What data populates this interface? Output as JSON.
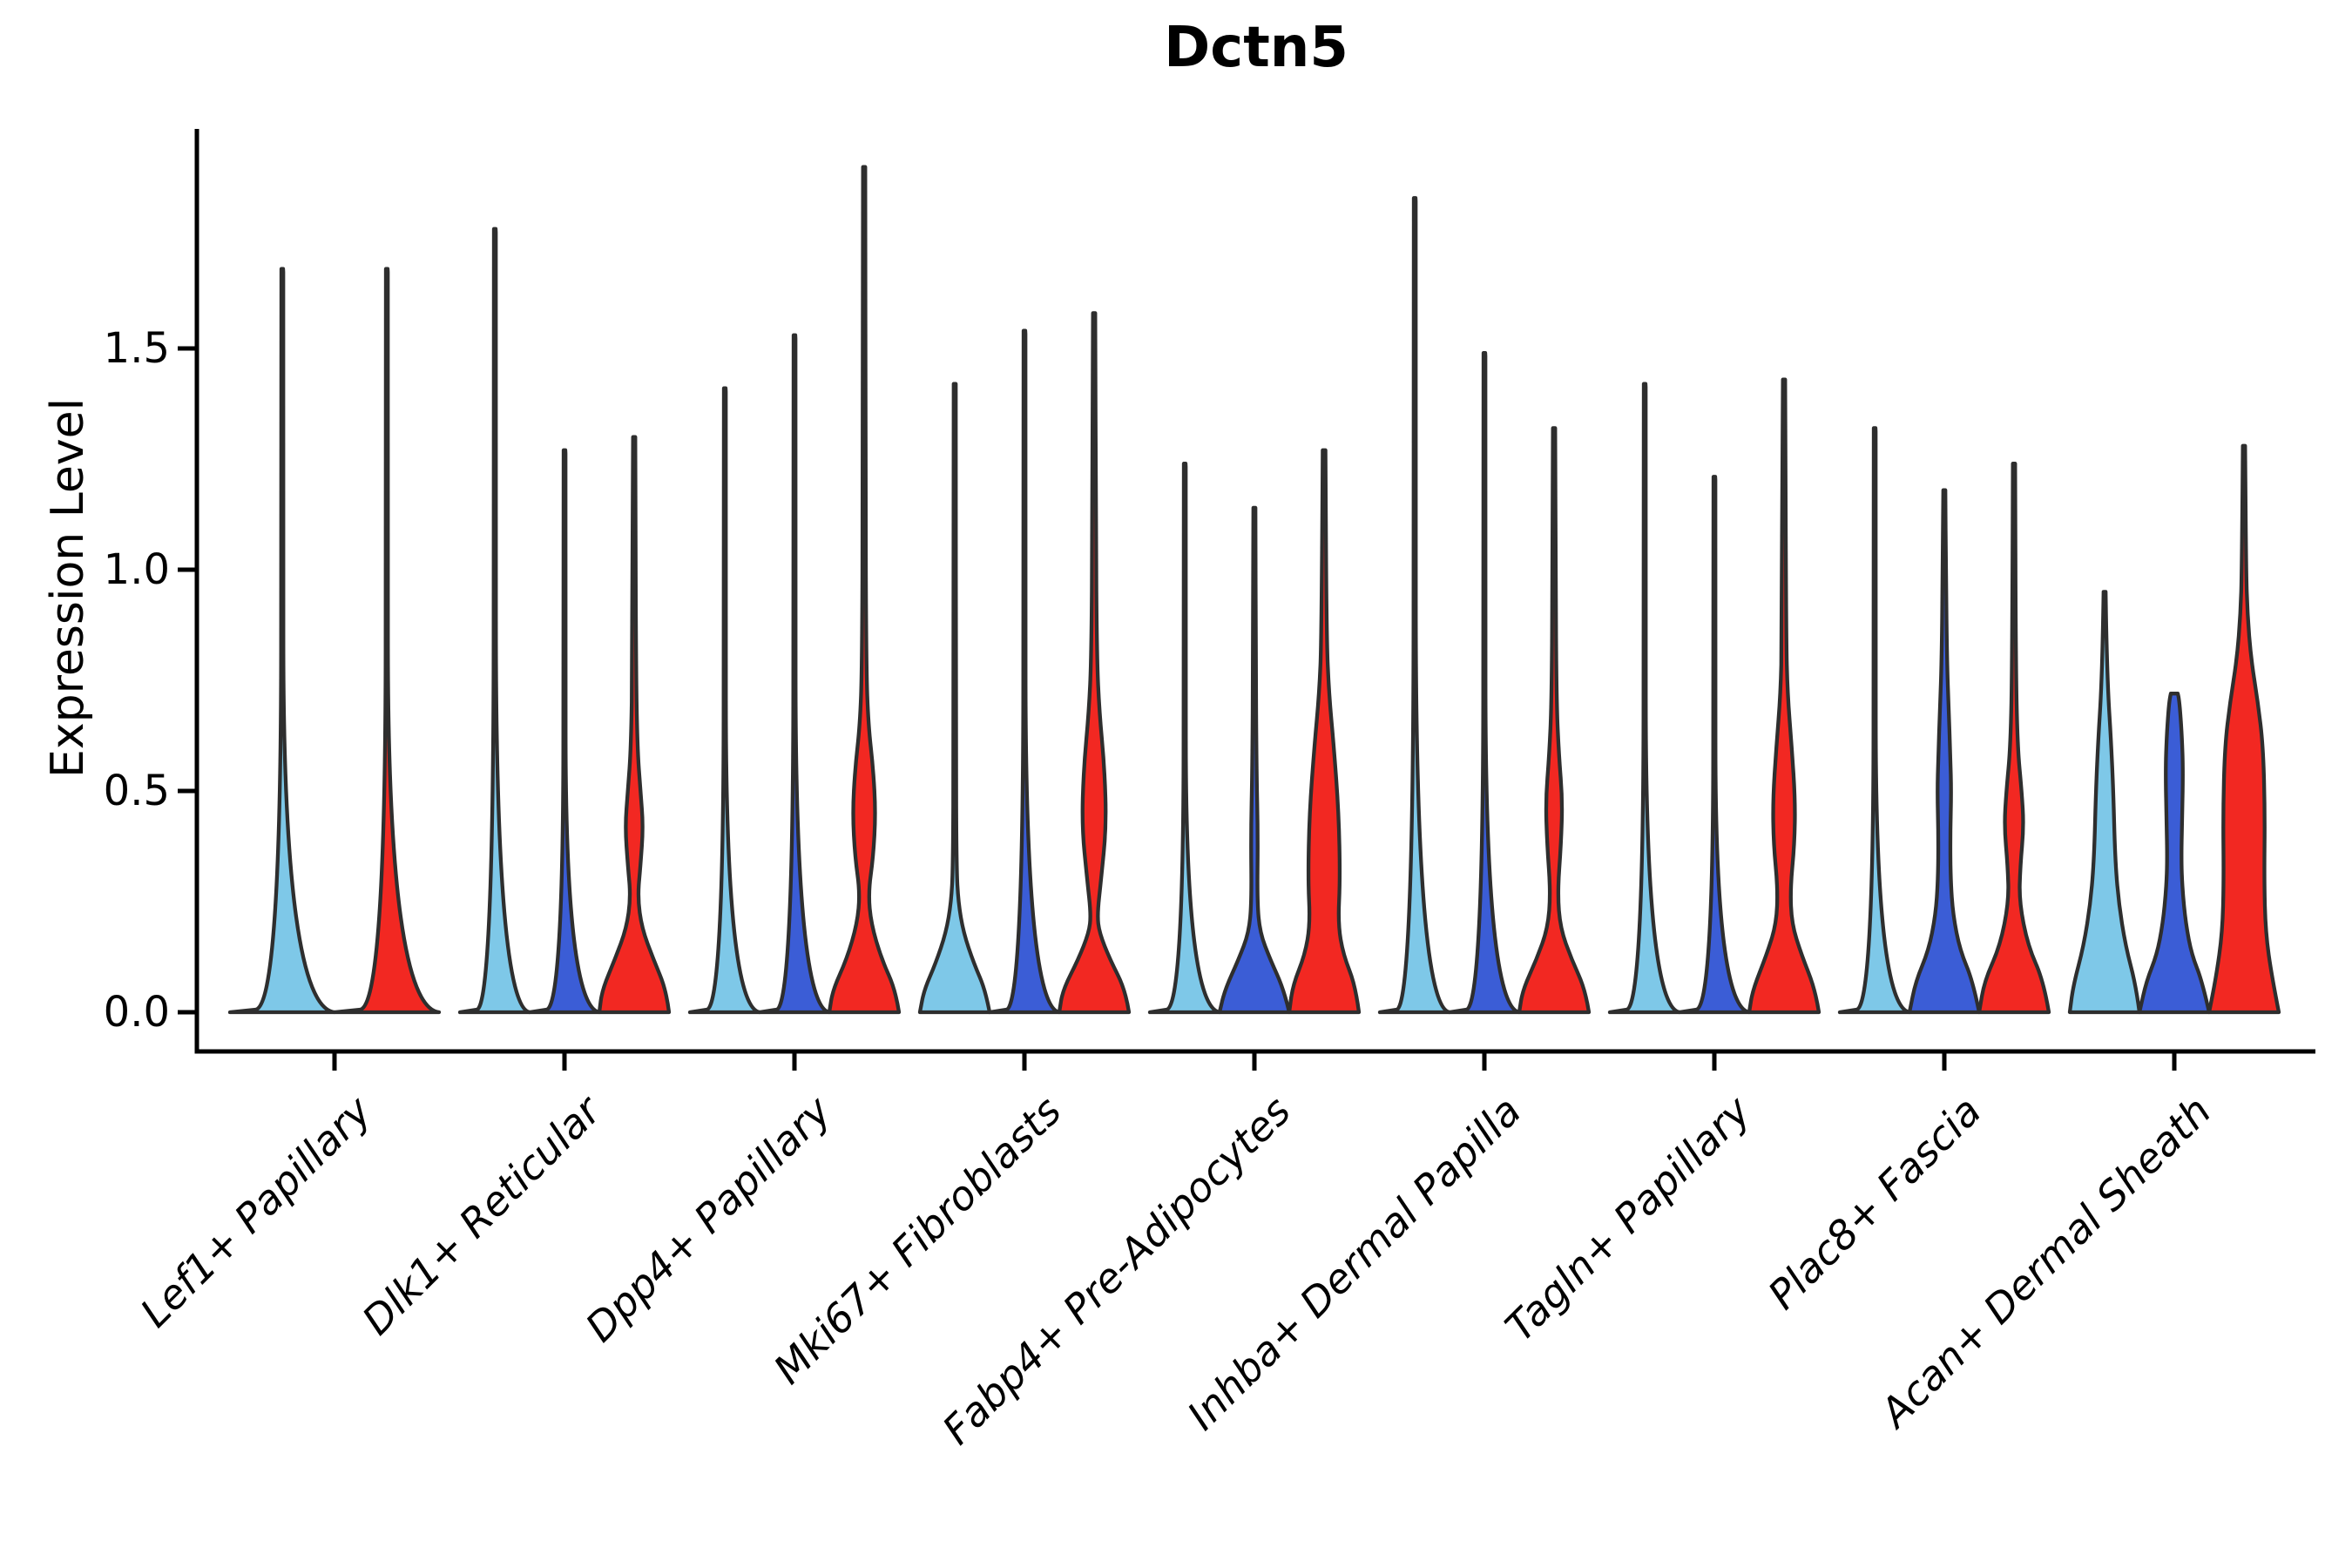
{
  "title": "Dctn5",
  "ylabel": "Expression Level",
  "colors": {
    "lightblue": "#7ec8e8",
    "darkblue": "#3b5dd6",
    "red": "#f22822",
    "violin_stroke": "#2e2e2e",
    "axis": "#000000"
  },
  "chart_data": {
    "type": "violin",
    "title": "Dctn5",
    "xlabel": "",
    "ylabel": "Expression Level",
    "yticks": [
      "0.0",
      "0.5",
      "1.0",
      "1.5"
    ],
    "ytick_values": [
      0.0,
      0.5,
      1.0,
      1.5
    ],
    "ylim": [
      -0.09,
      2.05
    ],
    "grid": false,
    "legend_position": "none",
    "x_labels_rotation_deg": 45,
    "categories": [
      "Lef1+ Papillary",
      "Dlk1+ Reticular",
      "Dpp4+ Papillary",
      "Mki67+ Fibroblasts",
      "Fabp4+ Pre-Adipocytes",
      "Inhba+ Dermal Papilla",
      "Tagln+ Papillary",
      "Plac8+ Fascia",
      "Acan+ Dermal Sheath"
    ],
    "groups": [
      {
        "label": "Lef1+ Papillary",
        "violins": [
          {
            "color": "lightblue",
            "max": 1.68,
            "shape": "line"
          },
          {
            "color": "red",
            "max": 1.68,
            "shape": "line"
          }
        ]
      },
      {
        "label": "Dlk1+ Reticular",
        "violins": [
          {
            "color": "lightblue",
            "max": 1.77,
            "shape": "line"
          },
          {
            "color": "darkblue",
            "max": 1.27,
            "shape": "line"
          },
          {
            "color": "red",
            "max": 1.3,
            "shape": "bulge",
            "profile": [
              [
                0,
                1
              ],
              [
                0.05,
                0.92
              ],
              [
                0.12,
                0.55
              ],
              [
                0.19,
                0.22
              ],
              [
                0.26,
                0.1
              ],
              [
                0.33,
                0.18
              ],
              [
                0.42,
                0.26
              ],
              [
                0.5,
                0.18
              ],
              [
                0.6,
                0.09
              ],
              [
                0.8,
                0.05
              ],
              [
                1.3,
                0.033
              ]
            ]
          }
        ]
      },
      {
        "label": "Dpp4+ Papillary",
        "violins": [
          {
            "color": "lightblue",
            "max": 1.41,
            "shape": "line"
          },
          {
            "color": "darkblue",
            "max": 1.53,
            "shape": "line"
          },
          {
            "color": "red",
            "max": 1.91,
            "shape": "bulge",
            "profile": [
              [
                0,
                1
              ],
              [
                0.05,
                0.9
              ],
              [
                0.12,
                0.5
              ],
              [
                0.2,
                0.2
              ],
              [
                0.27,
                0.12
              ],
              [
                0.35,
                0.26
              ],
              [
                0.45,
                0.33
              ],
              [
                0.55,
                0.26
              ],
              [
                0.65,
                0.12
              ],
              [
                0.78,
                0.06
              ],
              [
                1.2,
                0.04
              ],
              [
                1.91,
                0.033
              ]
            ]
          }
        ]
      },
      {
        "label": "Mki67+ Fibroblasts",
        "violins": [
          {
            "color": "lightblue",
            "max": 1.42,
            "shape": "bulge",
            "profile": [
              [
                0,
                1
              ],
              [
                0.05,
                0.88
              ],
              [
                0.11,
                0.55
              ],
              [
                0.18,
                0.25
              ],
              [
                0.25,
                0.1
              ],
              [
                0.33,
                0.05
              ],
              [
                0.6,
                0.035
              ],
              [
                1.42,
                0.03
              ]
            ]
          },
          {
            "color": "darkblue",
            "max": 1.54,
            "shape": "line"
          },
          {
            "color": "red",
            "max": 1.58,
            "shape": "bulge",
            "profile": [
              [
                0,
                1
              ],
              [
                0.05,
                0.9
              ],
              [
                0.12,
                0.45
              ],
              [
                0.18,
                0.15
              ],
              [
                0.22,
                0.09
              ],
              [
                0.3,
                0.2
              ],
              [
                0.42,
                0.35
              ],
              [
                0.55,
                0.3
              ],
              [
                0.68,
                0.15
              ],
              [
                0.8,
                0.08
              ],
              [
                1.1,
                0.05
              ],
              [
                1.58,
                0.033
              ]
            ]
          }
        ]
      },
      {
        "label": "Fabp4+ Pre-Adipocytes",
        "violins": [
          {
            "color": "lightblue",
            "max": 1.24,
            "shape": "line"
          },
          {
            "color": "darkblue",
            "max": 1.14,
            "shape": "bulge",
            "profile": [
              [
                0,
                1
              ],
              [
                0.05,
                0.85
              ],
              [
                0.12,
                0.45
              ],
              [
                0.18,
                0.16
              ],
              [
                0.25,
                0.08
              ],
              [
                0.4,
                0.1
              ],
              [
                0.55,
                0.06
              ],
              [
                0.8,
                0.04
              ],
              [
                1.14,
                0.03
              ]
            ]
          },
          {
            "color": "red",
            "max": 1.27,
            "shape": "bulge",
            "profile": [
              [
                0,
                1
              ],
              [
                0.06,
                0.9
              ],
              [
                0.13,
                0.55
              ],
              [
                0.2,
                0.4
              ],
              [
                0.3,
                0.46
              ],
              [
                0.45,
                0.42
              ],
              [
                0.6,
                0.28
              ],
              [
                0.72,
                0.14
              ],
              [
                0.85,
                0.07
              ],
              [
                1.27,
                0.04
              ]
            ]
          }
        ]
      },
      {
        "label": "Inhba+ Dermal Papilla",
        "violins": [
          {
            "color": "lightblue",
            "max": 1.84,
            "shape": "line"
          },
          {
            "color": "darkblue",
            "max": 1.49,
            "shape": "line"
          },
          {
            "color": "red",
            "max": 1.32,
            "shape": "bulge",
            "profile": [
              [
                0,
                1
              ],
              [
                0.05,
                0.9
              ],
              [
                0.12,
                0.5
              ],
              [
                0.19,
                0.18
              ],
              [
                0.27,
                0.1
              ],
              [
                0.38,
                0.2
              ],
              [
                0.48,
                0.24
              ],
              [
                0.58,
                0.14
              ],
              [
                0.7,
                0.07
              ],
              [
                1.0,
                0.045
              ],
              [
                1.32,
                0.033
              ]
            ]
          }
        ]
      },
      {
        "label": "Tagln+ Papillary",
        "violins": [
          {
            "color": "lightblue",
            "max": 1.42,
            "shape": "line"
          },
          {
            "color": "darkblue",
            "max": 1.21,
            "shape": "line"
          },
          {
            "color": "red",
            "max": 1.43,
            "shape": "bulge",
            "profile": [
              [
                0,
                1
              ],
              [
                0.05,
                0.9
              ],
              [
                0.13,
                0.5
              ],
              [
                0.2,
                0.22
              ],
              [
                0.28,
                0.18
              ],
              [
                0.38,
                0.3
              ],
              [
                0.48,
                0.32
              ],
              [
                0.6,
                0.22
              ],
              [
                0.72,
                0.1
              ],
              [
                0.85,
                0.06
              ],
              [
                1.43,
                0.033
              ]
            ]
          }
        ]
      },
      {
        "label": "Plac8+ Fascia",
        "violins": [
          {
            "color": "lightblue",
            "max": 1.32,
            "shape": "line"
          },
          {
            "color": "darkblue",
            "max": 1.18,
            "shape": "bulge",
            "profile": [
              [
                0,
                1
              ],
              [
                0.07,
                0.82
              ],
              [
                0.14,
                0.45
              ],
              [
                0.22,
                0.25
              ],
              [
                0.3,
                0.18
              ],
              [
                0.4,
                0.17
              ],
              [
                0.5,
                0.2
              ],
              [
                0.58,
                0.17
              ],
              [
                0.68,
                0.13
              ],
              [
                0.78,
                0.08
              ],
              [
                1.0,
                0.045
              ],
              [
                1.18,
                0.03
              ]
            ]
          },
          {
            "color": "red",
            "max": 1.24,
            "shape": "bulge",
            "profile": [
              [
                0,
                1
              ],
              [
                0.07,
                0.85
              ],
              [
                0.15,
                0.4
              ],
              [
                0.25,
                0.15
              ],
              [
                0.33,
                0.18
              ],
              [
                0.42,
                0.28
              ],
              [
                0.5,
                0.22
              ],
              [
                0.6,
                0.1
              ],
              [
                0.8,
                0.05
              ],
              [
                1.24,
                0.033
              ]
            ]
          }
        ]
      },
      {
        "label": "Acan+ Dermal Sheath",
        "violins": [
          {
            "color": "lightblue",
            "max": 0.95,
            "shape": "bulge",
            "profile": [
              [
                0,
                1
              ],
              [
                0.06,
                0.9
              ],
              [
                0.15,
                0.6
              ],
              [
                0.25,
                0.4
              ],
              [
                0.35,
                0.3
              ],
              [
                0.5,
                0.25
              ],
              [
                0.62,
                0.18
              ],
              [
                0.72,
                0.1
              ],
              [
                0.85,
                0.05
              ],
              [
                0.95,
                0.03
              ]
            ]
          },
          {
            "color": "darkblue",
            "max": 0.72,
            "shape": "blunt",
            "profile": [
              [
                0,
                1
              ],
              [
                0.07,
                0.8
              ],
              [
                0.13,
                0.5
              ],
              [
                0.2,
                0.33
              ],
              [
                0.28,
                0.23
              ],
              [
                0.35,
                0.2
              ],
              [
                0.45,
                0.23
              ],
              [
                0.55,
                0.25
              ],
              [
                0.62,
                0.22
              ],
              [
                0.68,
                0.17
              ],
              [
                0.71,
                0.13
              ],
              [
                0.72,
                0.1
              ]
            ]
          },
          {
            "color": "red",
            "max": 1.28,
            "shape": "bulge",
            "profile": [
              [
                0,
                1
              ],
              [
                0.08,
                0.8
              ],
              [
                0.18,
                0.62
              ],
              [
                0.3,
                0.58
              ],
              [
                0.45,
                0.6
              ],
              [
                0.6,
                0.55
              ],
              [
                0.7,
                0.4
              ],
              [
                0.8,
                0.2
              ],
              [
                0.9,
                0.1
              ],
              [
                1.0,
                0.06
              ],
              [
                1.28,
                0.033
              ]
            ]
          }
        ]
      }
    ]
  }
}
